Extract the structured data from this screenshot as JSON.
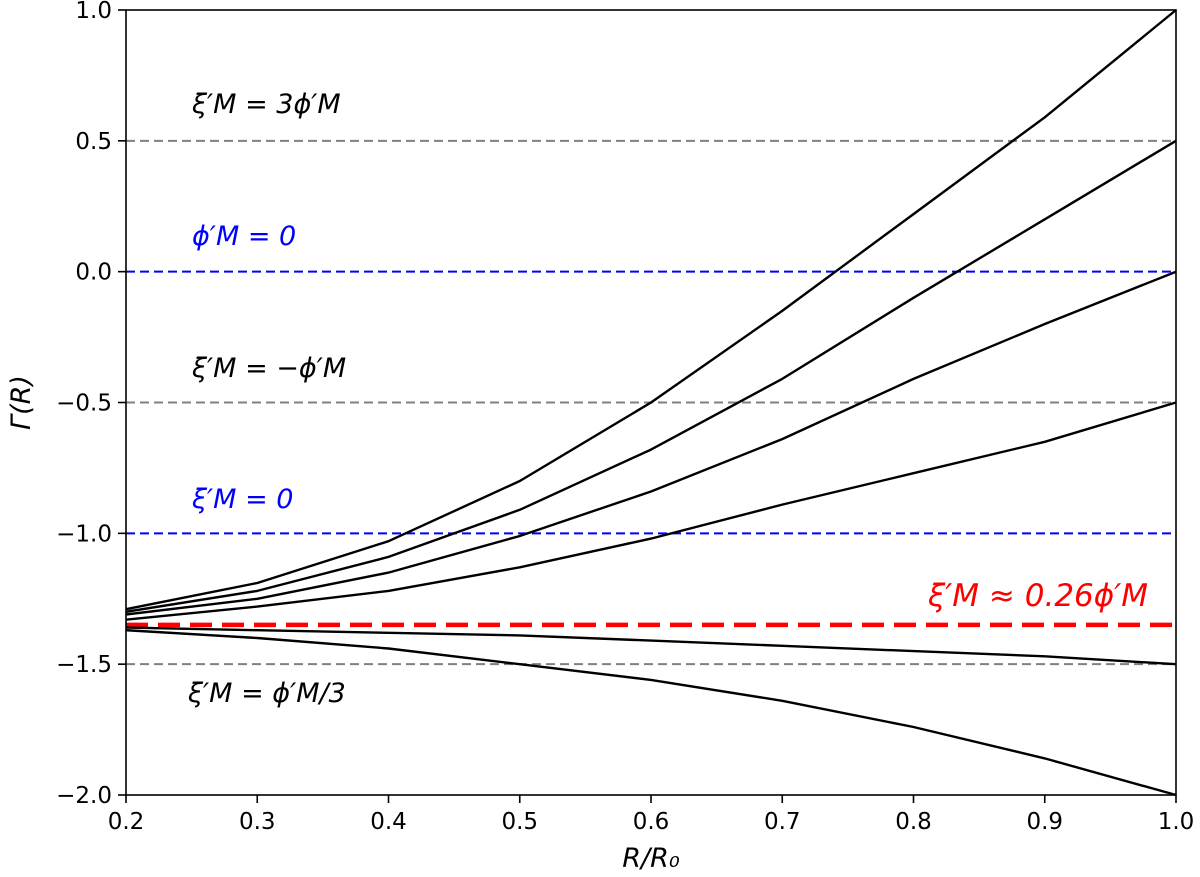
{
  "chart_data": {
    "type": "line",
    "xlabel": "R/R₀",
    "ylabel": "Γ(R)",
    "xlim": [
      0.2,
      1.0
    ],
    "ylim": [
      -2.0,
      1.0
    ],
    "x_ticks": [
      "0.2",
      "0.3",
      "0.4",
      "0.5",
      "0.6",
      "0.7",
      "0.8",
      "0.9",
      "1.0"
    ],
    "y_ticks": [
      "1.0",
      "0.5",
      "0.0",
      "−0.5",
      "−1.0",
      "−1.5",
      "−2.0"
    ],
    "grid": false,
    "x": [
      0.2,
      0.3,
      0.4,
      0.5,
      0.6,
      0.7,
      0.8,
      0.9,
      1.0
    ],
    "series": [
      {
        "values": [
          -1.29,
          -1.19,
          -1.03,
          -0.8,
          -0.5,
          -0.15,
          0.22,
          0.59,
          1.0
        ]
      },
      {
        "values": [
          -1.3,
          -1.22,
          -1.09,
          -0.91,
          -0.68,
          -0.41,
          -0.1,
          0.2,
          0.5
        ]
      },
      {
        "values": [
          -1.31,
          -1.25,
          -1.15,
          -1.01,
          -0.84,
          -0.64,
          -0.41,
          -0.2,
          0.0
        ]
      },
      {
        "values": [
          -1.33,
          -1.28,
          -1.22,
          -1.13,
          -1.02,
          -0.89,
          -0.77,
          -0.65,
          -0.5
        ]
      },
      {
        "values": [
          -1.36,
          -1.37,
          -1.38,
          -1.39,
          -1.41,
          -1.43,
          -1.45,
          -1.47,
          -1.5
        ]
      },
      {
        "values": [
          -1.37,
          -1.4,
          -1.44,
          -1.5,
          -1.56,
          -1.64,
          -1.74,
          -1.86,
          -2.0
        ]
      }
    ],
    "reference_lines": [
      {
        "y": 0.5,
        "color": "#808080",
        "style": "dashed"
      },
      {
        "y": 0.0,
        "color": "#0000ff",
        "style": "dashed"
      },
      {
        "y": -0.5,
        "color": "#808080",
        "style": "dashed"
      },
      {
        "y": -1.0,
        "color": "#0000ff",
        "style": "dashed"
      },
      {
        "y": -1.35,
        "color": "#ff0000",
        "style": "dashed-thick"
      },
      {
        "y": -1.5,
        "color": "#808080",
        "style": "dashed"
      }
    ],
    "annotations": [
      {
        "text": "ξ′M = 3ϕ′M",
        "color": "#000000"
      },
      {
        "text": "ϕ′M = 0",
        "color": "#0000ff"
      },
      {
        "text": "ξ′M = −ϕ′M",
        "color": "#000000"
      },
      {
        "text": "ξ′M = 0",
        "color": "#0000ff"
      },
      {
        "text": "ξ′M ≈ 0.26ϕ′M",
        "color": "#ff0000"
      },
      {
        "text": "ξ′M = ϕ′M/3",
        "color": "#000000"
      }
    ]
  }
}
